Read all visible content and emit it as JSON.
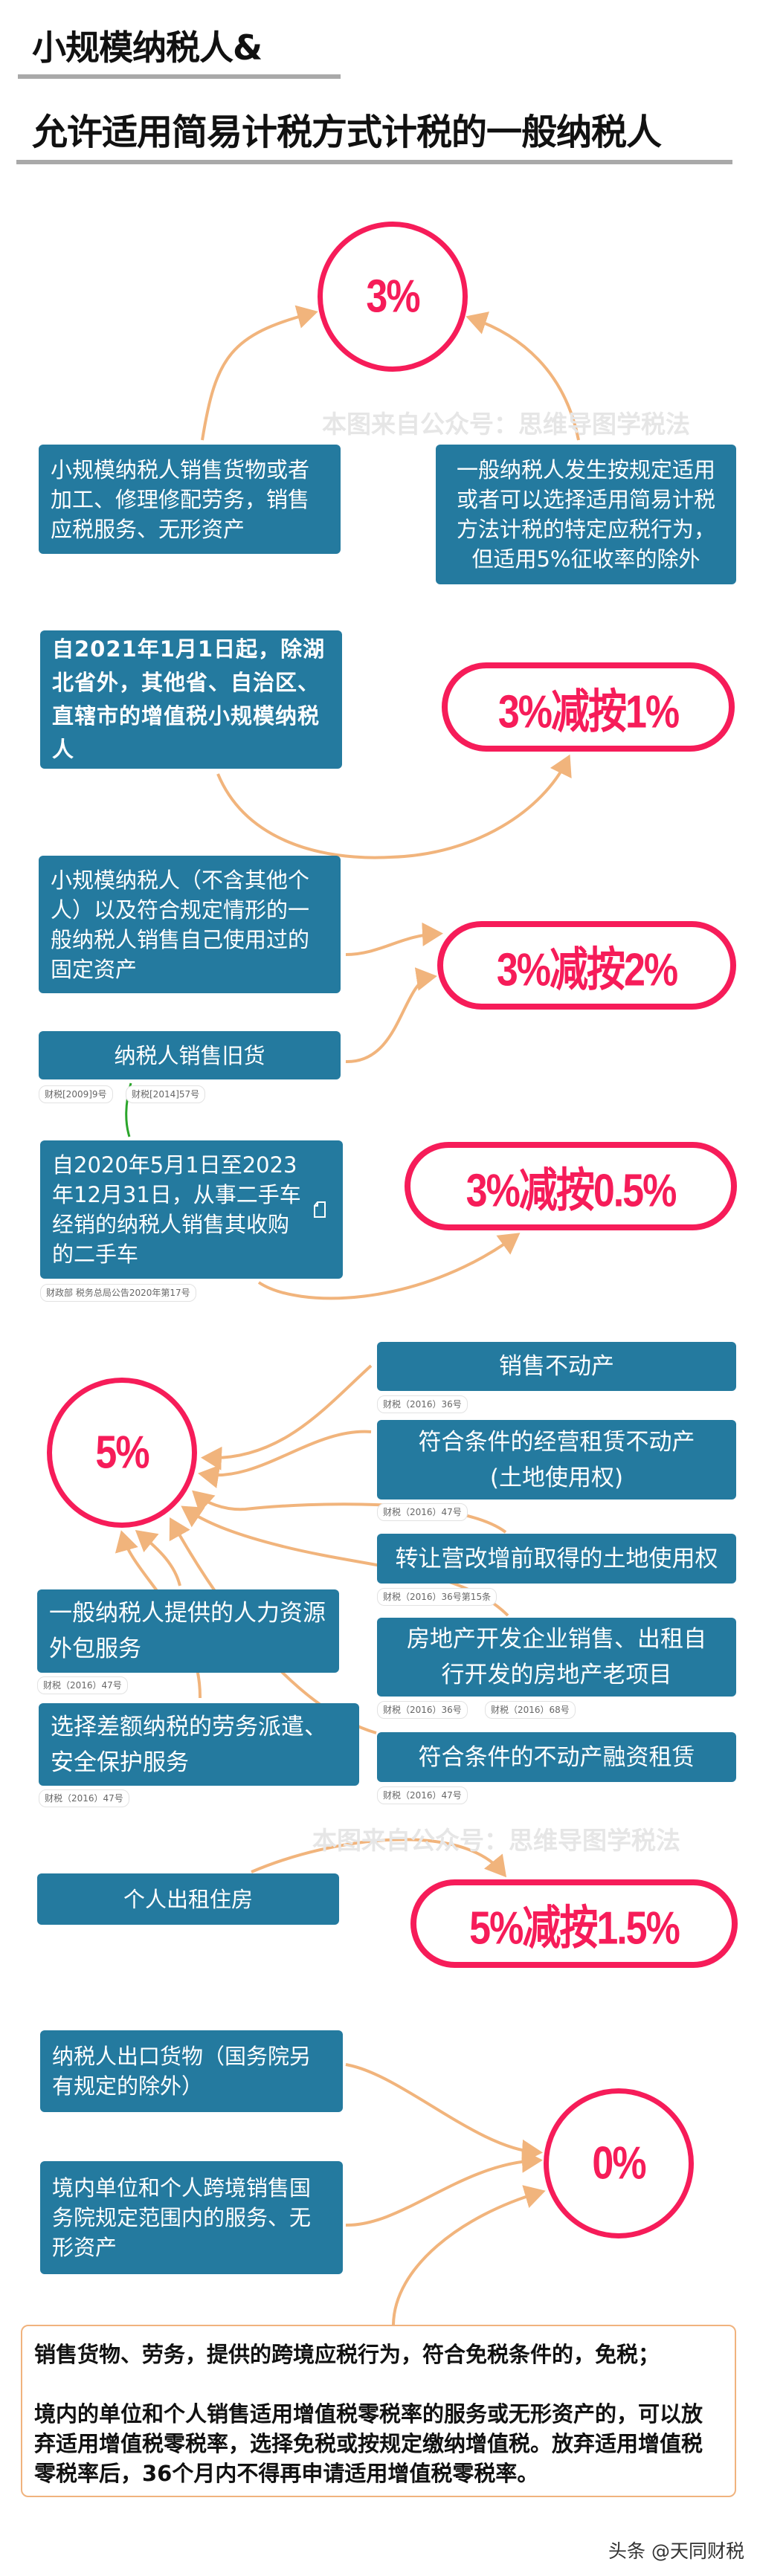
{
  "header": {
    "title_line1": "小规模纳税人&",
    "title_line2": "允许适用简易计税方式计税的一般纳税人"
  },
  "watermark": "本图来自公众号：思维导图学税法",
  "colors": {
    "box": "#247a9f",
    "rate": "#f61c59",
    "arrow": "#f1b47c",
    "connector": "#2aa52a"
  },
  "section_3pct": {
    "rate": "3%",
    "left": "小规模纳税人销售货物或者加工、修理修配劳务，销售应税服务、无形资产",
    "right": "一般纳税人发生按规定适用或者可以选择适用简易计税方法计税的特定应税行为，但适用5%征收率的除外"
  },
  "section_reduced": {
    "rate_1": "3%减按1%",
    "rate_2": "3%减按2%",
    "rate_05": "3%减按0.5%",
    "item_1": "自2021年1月1日起，除湖北省外，其他省、自治区、直辖市的增值税小规模纳税人",
    "item_2": "小规模纳税人（不含其他个人）以及符合规定情形的一般纳税人销售自己使用过的固定资产",
    "item_3": "纳税人销售旧货",
    "item_3_tags": [
      "财税[2009]9号",
      "财税[2014]57号"
    ],
    "item_4": "自2020年5月1日至2023年12月31日，从事二手车经销的纳税人销售其收购的二手车",
    "item_4_icon": "note-icon",
    "item_4_tag": "财政部 税务总局公告2020年第17号"
  },
  "section_5pct": {
    "rate": "5%",
    "right_items": [
      {
        "label": "销售不动产",
        "tags": [
          "财税（2016）36号"
        ]
      },
      {
        "label": "符合条件的经营租赁不动产(土地使用权)",
        "tags": [
          "财税（2016）47号"
        ]
      },
      {
        "label": "转让营改增前取得的土地使用权",
        "tags": [
          "财税（2016）36号第15条"
        ]
      },
      {
        "label": "房地产开发企业销售、出租自行开发的房地产老项目",
        "tags": [
          "财税（2016）36号",
          "财税（2016）68号"
        ]
      },
      {
        "label": "符合条件的不动产融资租赁",
        "tags": [
          "财税（2016）47号"
        ]
      }
    ],
    "left_items": [
      {
        "label": "一般纳税人提供的人力资源外包服务",
        "tags": [
          "财税（2016）47号"
        ]
      },
      {
        "label": "选择差额纳税的劳务派遣、安全保护服务",
        "tags": [
          "财税（2016）47号"
        ]
      }
    ]
  },
  "section_15": {
    "rate": "5%减按1.5%",
    "item": "个人出租住房"
  },
  "section_0pct": {
    "rate": "0%",
    "items": [
      "纳税人出口货物（国务院另有规定的除外）",
      "境内单位和个人跨境销售国务院规定范围内的服务、无形资产"
    ],
    "note_p1": "销售货物、劳务，提供的跨境应税行为，符合免税条件的，免税；",
    "note_p2": "境内的单位和个人销售适用增值税零税率的服务或无形资产的，可以放弃适用增值税零税率，选择免税或按规定缴纳增值税。放弃适用增值税零税率后，36个月内不得再申请适用增值税零税率。"
  },
  "footer": "头条 @天同财税"
}
